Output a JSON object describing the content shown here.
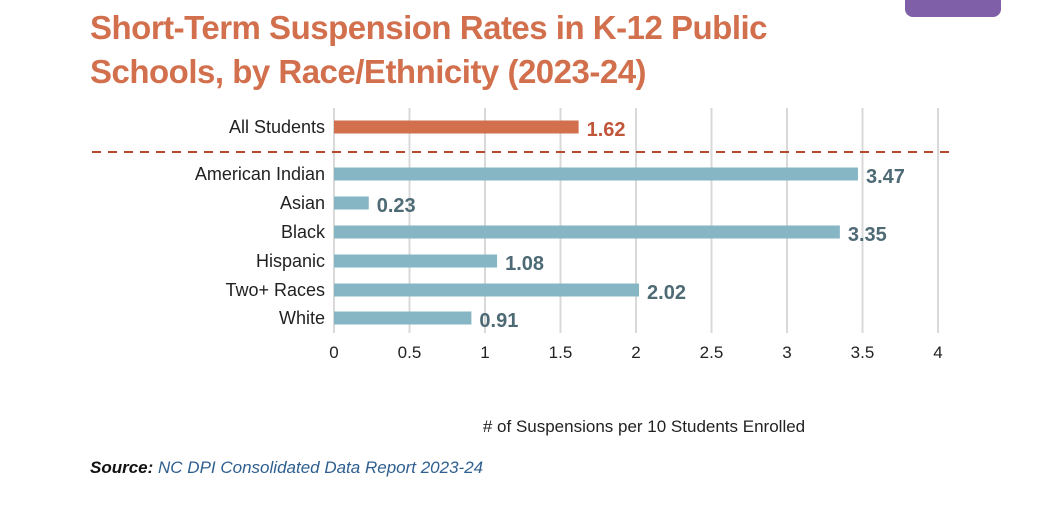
{
  "title_line1": "Short-Term Suspension Rates in K-12 Public",
  "title_line2": "Schools, by Race/Ethnicity (2023-24)",
  "source_label": "Source:",
  "source_text": "NC DPI Consolidated Data Report 2023-24",
  "colors": {
    "title": "#d2704e",
    "highlight_bar": "#d2704e",
    "highlight_label": "#c0563a",
    "group_bar": "#86b6c4",
    "group_label": "#4e6a75",
    "divider": "#b24a2f",
    "grid": "#d9d9d9",
    "source_text": "#2f5f8f",
    "tab": "#7e5fa8"
  },
  "chart_data": {
    "type": "bar",
    "orientation": "horizontal",
    "xlabel": "# of Suspensions per 10 Students Enrolled",
    "xlim": [
      0,
      4
    ],
    "xticks": [
      "0",
      "0.5",
      "1",
      "1.5",
      "2",
      "2.5",
      "3",
      "3.5",
      "4"
    ],
    "grid": "vertical",
    "categories": [
      "All Students",
      "American Indian",
      "Asian",
      "Black",
      "Hispanic",
      "Two+ Races",
      "White"
    ],
    "values": [
      1.62,
      3.47,
      0.23,
      3.35,
      1.08,
      2.02,
      0.91
    ],
    "value_labels": [
      "1.62",
      "3.47",
      "0.23",
      "3.35",
      "1.08",
      "2.02",
      "0.91"
    ],
    "highlight": [
      "All Students"
    ]
  }
}
